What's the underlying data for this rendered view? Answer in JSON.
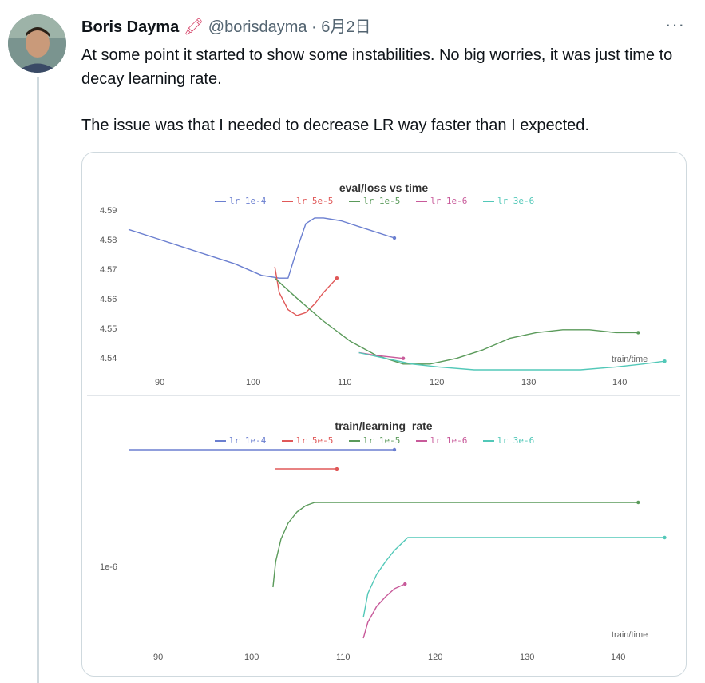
{
  "tweet": {
    "author_name": "Boris Dayma",
    "author_emoji": "🖍",
    "handle": "@borisdayma",
    "separator": "·",
    "date": "6月2日",
    "more_label": "···",
    "paragraph_1": "At some point it started to show some instabilities. No big worries, it was just time to decay learning rate.",
    "paragraph_2": "The issue was that I needed to decrease LR way faster than I expected."
  },
  "colors": {
    "lr_1e-4": "#6b7fd0",
    "lr_5e-5": "#e05858",
    "lr_1e-5": "#5a9a5a",
    "lr_1e-6": "#c85a9a",
    "lr_3e-6": "#52c8b8"
  },
  "chart_data": [
    {
      "type": "line",
      "title": "eval/loss vs time",
      "xlabel": "train/time",
      "ylabel": "",
      "xlim": [
        85,
        145
      ],
      "ylim": [
        4.537,
        4.595
      ],
      "x_ticks": [
        "90",
        "100",
        "110",
        "120",
        "130",
        "140"
      ],
      "y_ticks": [
        "4.59",
        "4.58",
        "4.57",
        "4.56",
        "4.55",
        "4.54"
      ],
      "legend": [
        "lr 1e-4",
        "lr 5e-5",
        "lr 1e-5",
        "lr 1e-6",
        "lr 3e-6"
      ],
      "series": [
        {
          "name": "lr 1e-4",
          "color": "#6b7fd0",
          "x": [
            85,
            88,
            91,
            94,
            97,
            100,
            102,
            103,
            104,
            105,
            106,
            107,
            109,
            112,
            115
          ],
          "y": [
            4.586,
            4.583,
            4.58,
            4.577,
            4.574,
            4.57,
            4.569,
            4.569,
            4.579,
            4.588,
            4.59,
            4.59,
            4.589,
            4.586,
            4.583
          ]
        },
        {
          "name": "lr 5e-5",
          "color": "#e05858",
          "x": [
            101.5,
            102,
            103,
            104,
            105,
            106,
            107,
            108.5
          ],
          "y": [
            4.573,
            4.564,
            4.558,
            4.556,
            4.557,
            4.56,
            4.564,
            4.569
          ]
        },
        {
          "name": "lr 1e-5",
          "color": "#5a9a5a",
          "x": [
            101.5,
            104,
            107,
            110,
            113,
            116,
            119,
            122,
            125,
            128,
            131,
            134,
            137,
            140,
            142.5
          ],
          "y": [
            4.569,
            4.562,
            4.554,
            4.547,
            4.542,
            4.539,
            4.539,
            4.541,
            4.544,
            4.548,
            4.55,
            4.551,
            4.551,
            4.55,
            4.55
          ]
        },
        {
          "name": "lr 1e-6",
          "color": "#c85a9a",
          "x": [
            111,
            113,
            116
          ],
          "y": [
            4.543,
            4.542,
            4.541
          ]
        },
        {
          "name": "lr 3e-6",
          "color": "#52c8b8",
          "x": [
            111,
            114,
            117,
            120,
            124,
            128,
            132,
            136,
            140,
            143,
            145.5
          ],
          "y": [
            4.543,
            4.541,
            4.539,
            4.538,
            4.537,
            4.537,
            4.537,
            4.537,
            4.538,
            4.539,
            4.54
          ]
        }
      ]
    },
    {
      "type": "line",
      "title": "train/learning_rate",
      "xlabel": "train/time",
      "ylabel": "",
      "xlim": [
        85,
        145
      ],
      "ylim": [
        0.6,
        1.9
      ],
      "x_ticks": [
        "90",
        "100",
        "110",
        "120",
        "130",
        "140"
      ],
      "y_ticks": [
        "1e-6"
      ],
      "legend": [
        "lr 1e-4",
        "lr 5e-5",
        "lr 1e-5",
        "lr 1e-6",
        "lr 3e-6"
      ],
      "series": [
        {
          "name": "lr 1e-4",
          "color": "#6b7fd0",
          "x": [
            85,
            115
          ],
          "y": [
            1.8,
            1.8
          ]
        },
        {
          "name": "lr 5e-5",
          "color": "#e05858",
          "x": [
            101.5,
            108.5
          ],
          "y": [
            1.68,
            1.68
          ]
        },
        {
          "name": "lr 1e-5",
          "color": "#5a9a5a",
          "x": [
            101.3,
            101.6,
            102.2,
            103,
            104,
            105,
            106,
            110,
            120,
            130,
            142.5
          ],
          "y": [
            0.94,
            1.1,
            1.24,
            1.34,
            1.41,
            1.45,
            1.47,
            1.47,
            1.47,
            1.47,
            1.47
          ]
        },
        {
          "name": "lr 1e-6",
          "color": "#c85a9a",
          "x": [
            111.5,
            112,
            113,
            114,
            115,
            116.2
          ],
          "y": [
            0.62,
            0.72,
            0.82,
            0.88,
            0.93,
            0.96
          ]
        },
        {
          "name": "lr 3e-6",
          "color": "#52c8b8",
          "x": [
            111.5,
            112,
            113,
            114,
            115,
            116.5,
            120,
            130,
            140,
            145.5
          ],
          "y": [
            0.75,
            0.9,
            1.02,
            1.1,
            1.17,
            1.25,
            1.25,
            1.25,
            1.25,
            1.25
          ]
        }
      ]
    }
  ]
}
